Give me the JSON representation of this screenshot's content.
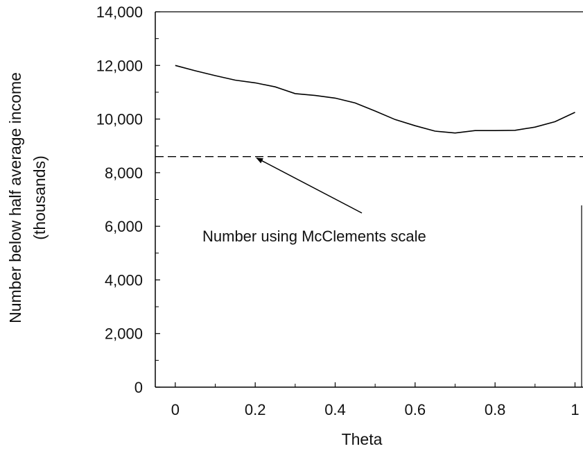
{
  "chart_data": {
    "type": "line",
    "title": "",
    "xlabel": "Theta",
    "ylabel": "Number below half average income",
    "ylabel_sub": "(thousands)",
    "xlim": [
      -0.05,
      1.02
    ],
    "ylim": [
      0,
      14000
    ],
    "xticks": [
      0,
      0.2,
      0.4,
      0.6,
      0.8,
      1
    ],
    "xtick_labels": [
      "0",
      "0.2",
      "0.4",
      "0.6",
      "0.8",
      "1"
    ],
    "yticks": [
      0,
      2000,
      4000,
      6000,
      8000,
      10000,
      12000,
      14000
    ],
    "ytick_labels": [
      "0",
      "2,000",
      "4,000",
      "6,000",
      "8,000",
      "10,000",
      "12,000",
      "14,000"
    ],
    "grid": false,
    "series": [
      {
        "x": [
          0,
          0.05,
          0.1,
          0.15,
          0.2,
          0.25,
          0.3,
          0.35,
          0.4,
          0.45,
          0.5,
          0.55,
          0.6,
          0.65,
          0.7,
          0.75,
          0.8,
          0.85,
          0.9,
          0.95,
          1
        ],
        "values": [
          12000,
          11800,
          11620,
          11450,
          11350,
          11200,
          10950,
          10880,
          10780,
          10600,
          10300,
          9980,
          9750,
          9550,
          9480,
          9570,
          9570,
          9580,
          9700,
          9900,
          10250
        ],
        "style": "solid"
      }
    ],
    "reference_lines": [
      {
        "y": 8600,
        "style": "dashed"
      }
    ],
    "annotations": [
      {
        "text": "Number using McClements scale",
        "arrow_to": {
          "x": 0.2,
          "y": 8600
        }
      }
    ]
  }
}
